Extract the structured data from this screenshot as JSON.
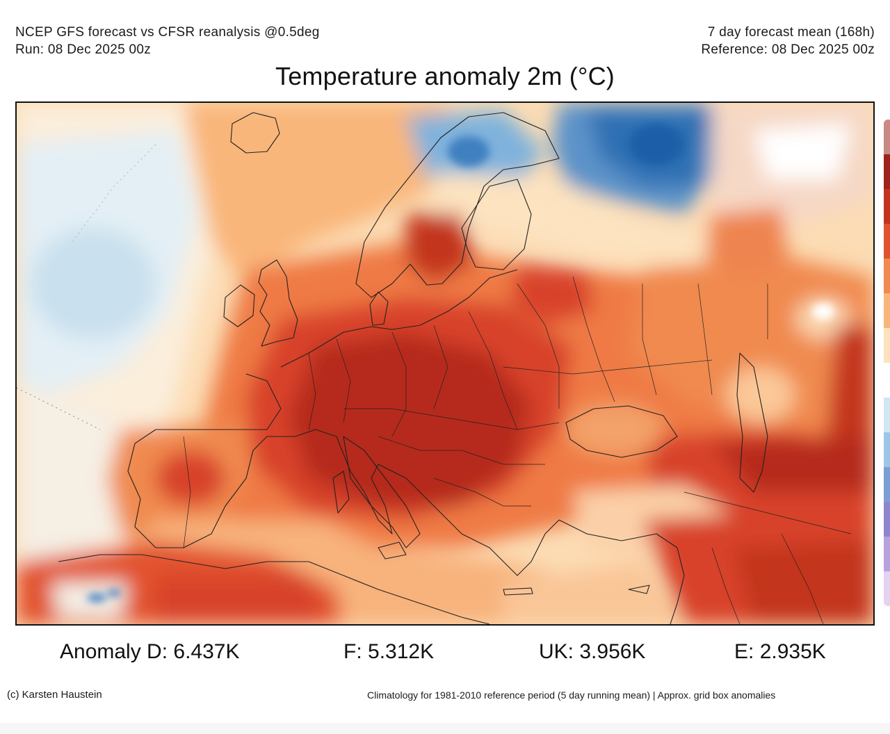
{
  "header": {
    "line1_left": "NCEP GFS forecast vs CFSR reanalysis @0.5deg",
    "line2_left": "Run: 08 Dec 2025 00z",
    "line1_right": "7 day forecast mean (168h)",
    "line2_right": "Reference: 08 Dec 2025 00z"
  },
  "title": "Temperature anomaly 2m (°C)",
  "anomalies": [
    {
      "label": "Anomaly D:",
      "value": "6.437K"
    },
    {
      "label": "F:",
      "value": "5.312K"
    },
    {
      "label": "UK:",
      "value": "3.956K"
    },
    {
      "label": "E:",
      "value": "2.935K"
    }
  ],
  "footer": {
    "credit": "(c) Karsten Haustein",
    "note": "Climatology for 1981-2010 reference period (5 day running mean) | Approx. grid box anomalies"
  },
  "colors": {
    "ocean_light": "#fde7c8",
    "warm_light": "#f9b67a",
    "warm": "#ef7a44",
    "hot": "#d8432a",
    "very_hot": "#b52a1e",
    "cold_light": "#dcedf7",
    "cold": "#7fb2dc",
    "very_cold": "#2f6fb3",
    "border": "#222222"
  },
  "colorbar": [
    "#e3d3f0",
    "#b6a3dc",
    "#8e86cc",
    "#7a9fd4",
    "#9cc6e6",
    "#cfe6f3",
    "#ffffff",
    "#fde2bd",
    "#f9b67a",
    "#f08a50",
    "#e0532f",
    "#c3341f",
    "#9e231c",
    "#c98a85"
  ]
}
